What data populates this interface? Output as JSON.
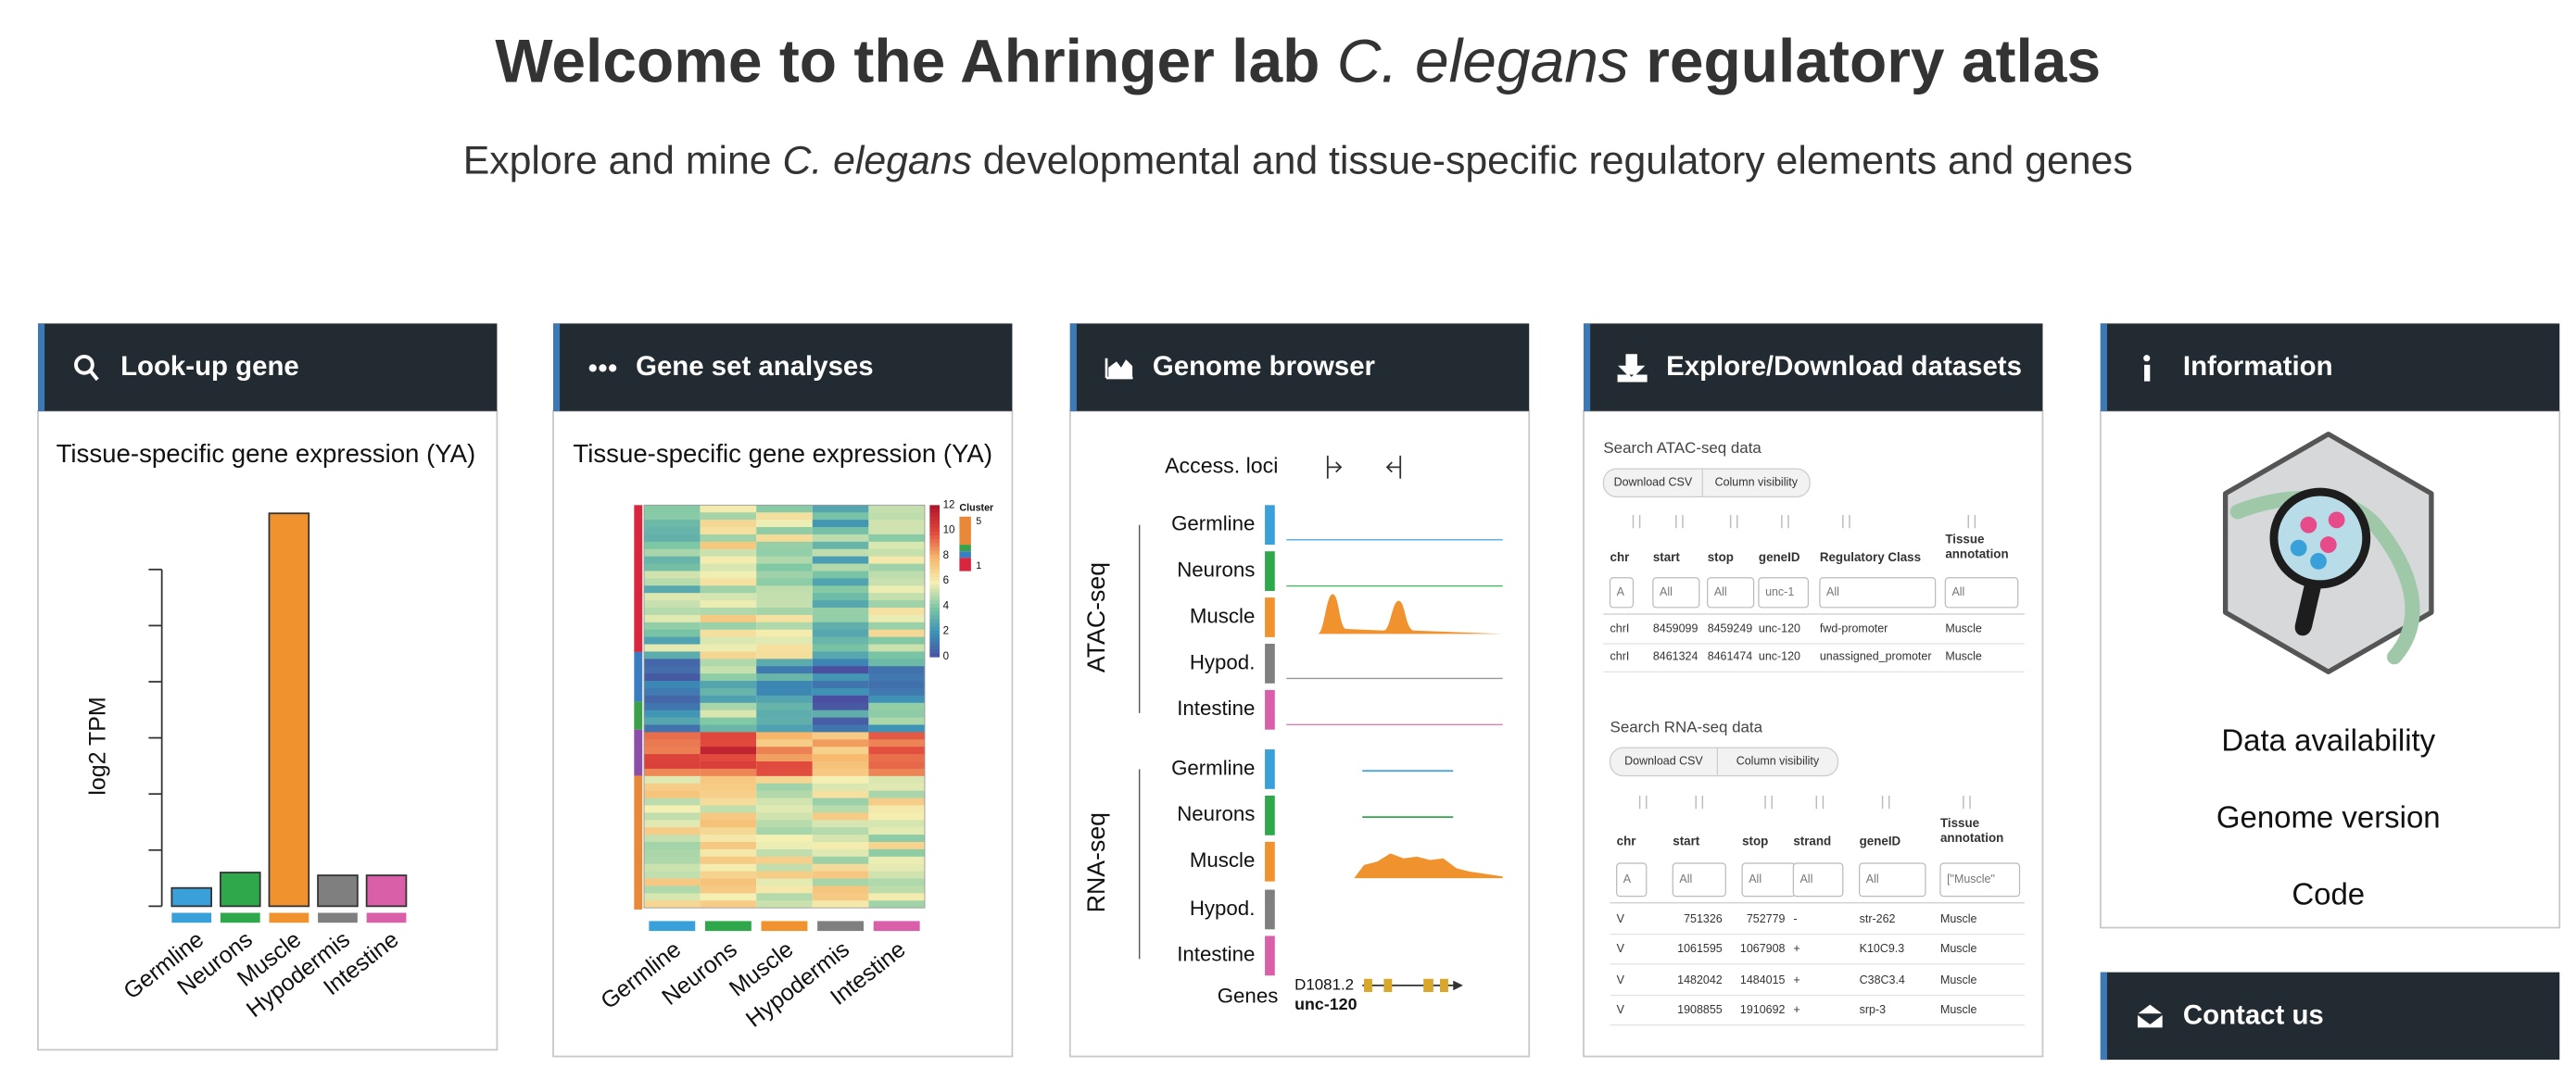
{
  "header": {
    "title": [
      "Welcome to the Ahringer lab ",
      "C. elegans",
      " regulatory atlas"
    ],
    "subtitle": [
      "Explore and mine ",
      "C. elegans",
      " developmental and tissue-specific regulatory elements and genes"
    ]
  },
  "cards": [
    {
      "title": "Look-up gene",
      "chart": {
        "type": "bar",
        "title": "Tissue-specific gene expression (YA)",
        "y_label": "log2 TPM",
        "categories": [
          "Germline",
          "Neurons",
          "Muscle",
          "Hypodermis",
          "Intestine"
        ],
        "values": [
          0.65,
          1.2,
          14,
          1.1,
          1.1
        ],
        "colors": [
          "#3aa0d9",
          "#2ea84a",
          "#f0922e",
          "#7f7f7f",
          "#d95fa8"
        ]
      }
    },
    {
      "title": "Gene set analyses",
      "heatmap": {
        "title": "Tissue-specific gene expression (YA)",
        "categories": [
          "Germline",
          "Neurons",
          "Muscle",
          "Hypodermis",
          "Intestine"
        ],
        "colorbar_ticks": [
          12,
          10,
          8,
          6,
          4,
          2,
          0
        ],
        "cluster_label": "Cluster",
        "cluster_ticks": [
          5,
          1
        ]
      }
    },
    {
      "title": "Genome browser",
      "browser": {
        "loci_label": "Access. loci",
        "groups": [
          {
            "name": "ATAC-seq",
            "tracks": [
              "Germline",
              "Neurons",
              "Muscle",
              "Hypod.",
              "Intestine"
            ]
          },
          {
            "name": "RNA-seq",
            "tracks": [
              "Germline",
              "Neurons",
              "Muscle",
              "Hypod.",
              "Intestine"
            ]
          }
        ],
        "genes_label": "Genes",
        "gene_ids": [
          "D1081.2",
          "unc-120"
        ]
      }
    },
    {
      "title": "Explore/Download datasets",
      "tables": [
        {
          "title": "Search ATAC-seq data",
          "buttons": [
            "Download CSV",
            "Column visibility"
          ],
          "columns": [
            "chr",
            "start",
            "stop",
            "geneID",
            "Regulatory Class",
            "Tissue annotation"
          ],
          "filters": [
            "A",
            "All",
            "All",
            "unc-1",
            "All",
            "All"
          ],
          "rows": [
            [
              "chrI",
              "8459099",
              "8459249",
              "unc-120",
              "fwd-promoter",
              "Muscle"
            ],
            [
              "chrI",
              "8461324",
              "8461474",
              "unc-120",
              "unassigned_promoter",
              "Muscle"
            ]
          ]
        },
        {
          "title": "Search RNA-seq data",
          "buttons": [
            "Download CSV",
            "Column visibility"
          ],
          "columns": [
            "chr",
            "start",
            "stop",
            "strand",
            "geneID",
            "Tissue annotation"
          ],
          "filters": [
            "A",
            "All",
            "All",
            "All",
            "All",
            "[\"Muscle\""
          ],
          "rows": [
            [
              "V",
              "751326",
              "752779",
              "-",
              "str-262",
              "Muscle"
            ],
            [
              "V",
              "1061595",
              "1067908",
              "+",
              "K10C9.3",
              "Muscle"
            ],
            [
              "V",
              "1482042",
              "1484015",
              "+",
              "C38C3.4",
              "Muscle"
            ],
            [
              "V",
              "1908855",
              "1910692",
              "+",
              "srp-3",
              "Muscle"
            ]
          ]
        }
      ]
    },
    {
      "title": "Information",
      "links": [
        "Data availability",
        "Genome version",
        "Code"
      ]
    },
    {
      "title": "Contact us"
    }
  ]
}
